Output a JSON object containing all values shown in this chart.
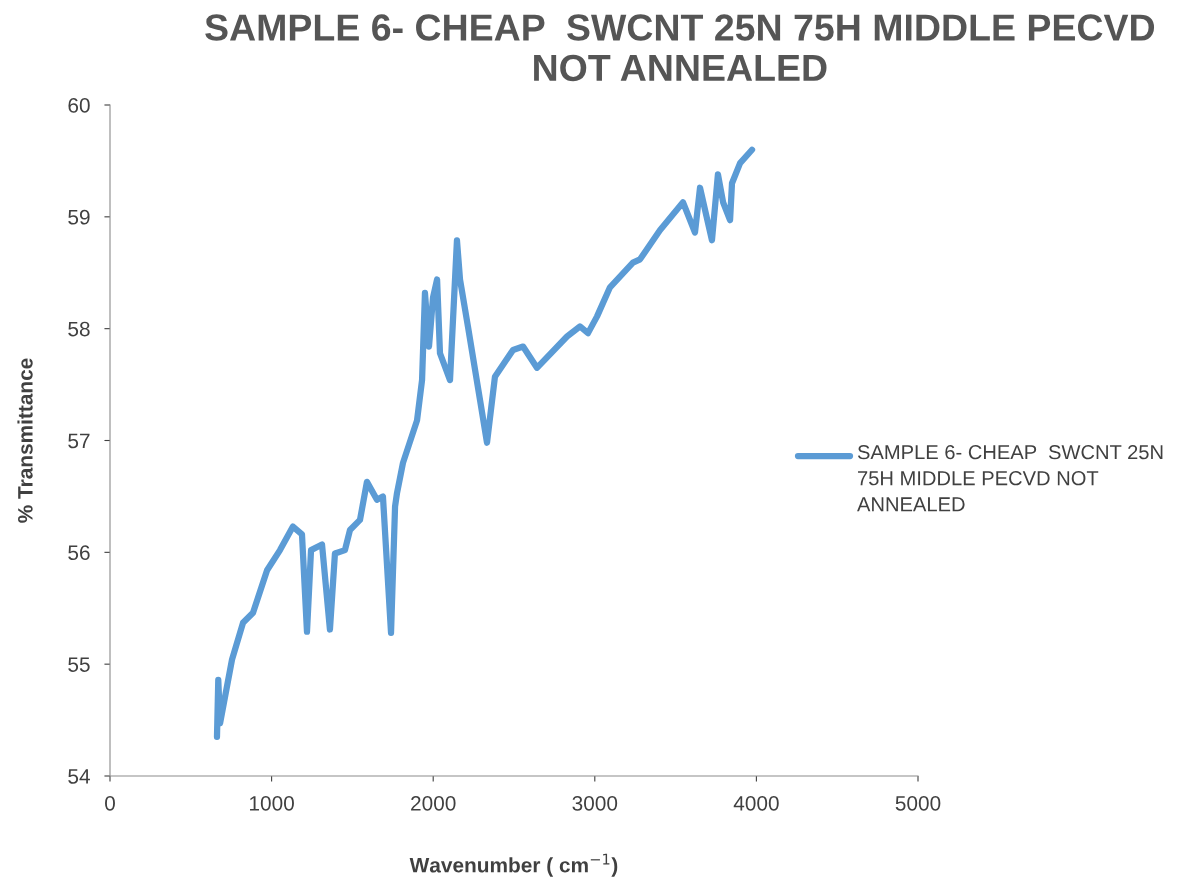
{
  "chart_data": {
    "type": "line",
    "title": "SAMPLE 6- CHEAP  SWCNT 25N 75H MIDDLE PECVD NOT ANNEALED",
    "xlabel": "Wavenumber ( cm$^{−1}$)",
    "ylabel": "% Transmittance",
    "xlim": [
      0,
      5000
    ],
    "xticks": [
      0,
      1000,
      2000,
      3000,
      4000,
      5000
    ],
    "ylim": [
      54,
      60
    ],
    "yticks": [
      54,
      55,
      56,
      57,
      58,
      59,
      60
    ],
    "grid": false,
    "legend": "right",
    "marker": "none",
    "line_style": "solid",
    "series": [
      {
        "name": "SAMPLE 6- CHEAP  SWCNT 25N 75H MIDDLE PECVD NOT ANNEALED",
        "color": "#5b9bd5",
        "x": [
          662,
          670,
          681,
          755,
          823,
          885,
          972,
          1052,
          1132,
          1188,
          1219,
          1244,
          1312,
          1361,
          1392,
          1454,
          1485,
          1547,
          1590,
          1652,
          1689,
          1739,
          1764,
          1776,
          1813,
          1900,
          1931,
          1949,
          1974,
          1999,
          2024,
          2042,
          2104,
          2147,
          2166,
          2215,
          2290,
          2333,
          2382,
          2494,
          2556,
          2642,
          2828,
          2908,
          2958,
          3014,
          3094,
          3236,
          3280,
          3403,
          3546,
          3620,
          3651,
          3725,
          3762,
          3794,
          3837,
          3849,
          3899,
          3973
        ],
        "values": [
          54.35,
          54.86,
          54.47,
          55.04,
          55.37,
          55.46,
          55.84,
          56.02,
          56.23,
          56.16,
          55.29,
          56.02,
          56.07,
          55.31,
          55.99,
          56.02,
          56.2,
          56.29,
          56.63,
          56.47,
          56.5,
          55.28,
          56.41,
          56.53,
          56.8,
          57.18,
          57.54,
          58.32,
          57.84,
          58.28,
          58.44,
          57.78,
          57.54,
          58.79,
          58.44,
          58.02,
          57.36,
          56.98,
          57.57,
          57.81,
          57.84,
          57.65,
          57.93,
          58.02,
          57.96,
          58.11,
          58.37,
          58.59,
          58.62,
          58.88,
          59.13,
          58.86,
          59.26,
          58.79,
          59.38,
          59.13,
          58.97,
          59.3,
          59.48,
          59.6
        ]
      }
    ]
  }
}
